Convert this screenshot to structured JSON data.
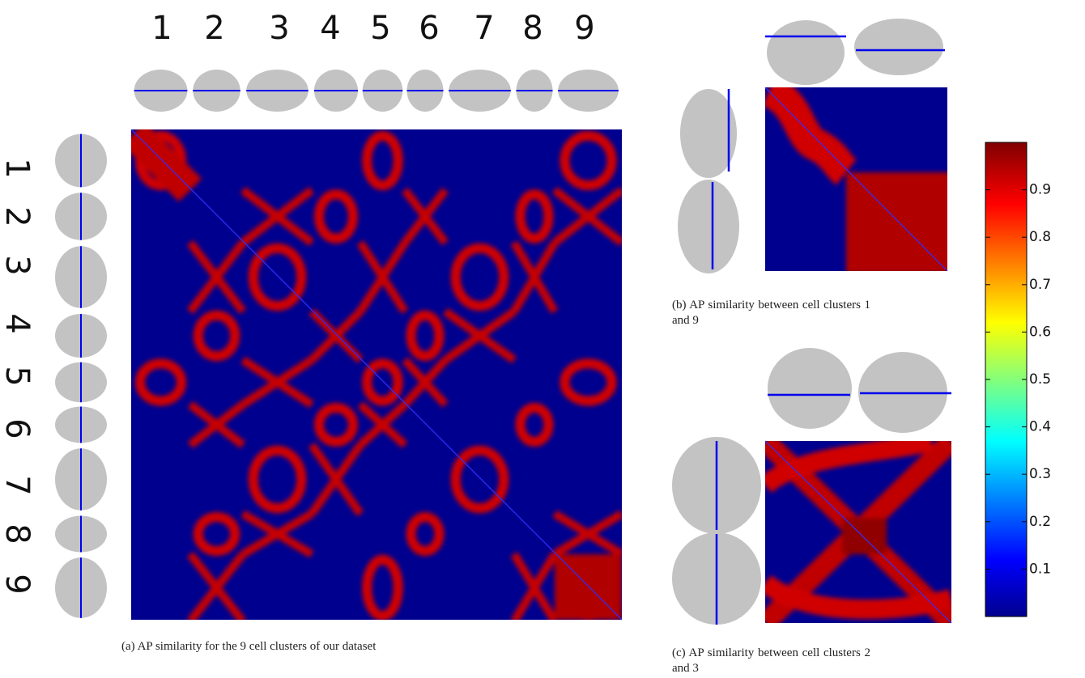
{
  "panel_a": {
    "caption": "(a) AP similarity for the 9 cell clusters of our dataset",
    "column_labels": [
      "1",
      "2",
      "3",
      "4",
      "5",
      "6",
      "7",
      "8",
      "9"
    ],
    "row_labels": [
      "1",
      "2",
      "3",
      "4",
      "5",
      "6",
      "7",
      "8",
      "9"
    ]
  },
  "panel_b": {
    "caption": "(b) AP similarity between cell clusters 1 and 9"
  },
  "panel_c": {
    "caption": "(c) AP similarity between cell clusters 2 and 3"
  },
  "colorbar": {
    "lim": [
      0,
      1
    ],
    "ticks": [
      0.1,
      0.2,
      0.3,
      0.4,
      0.5,
      0.6,
      0.7,
      0.8,
      0.9
    ]
  }
}
